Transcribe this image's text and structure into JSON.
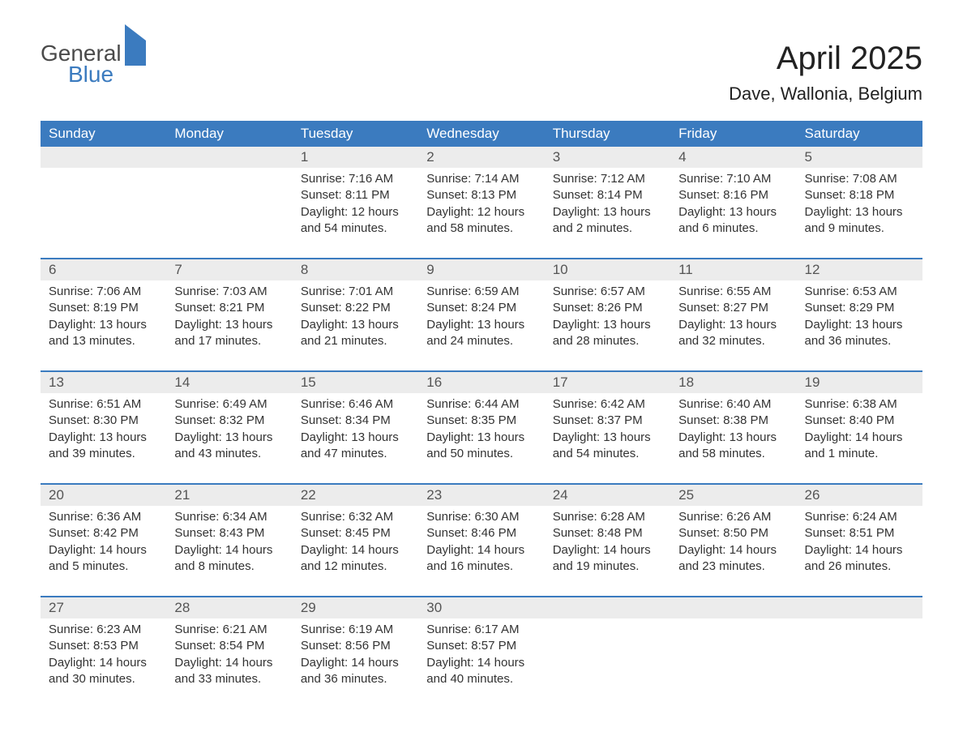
{
  "logo": {
    "general": "General",
    "blue": "Blue"
  },
  "title": "April 2025",
  "location": "Dave, Wallonia, Belgium",
  "colors": {
    "header_bg": "#3b7bbf",
    "header_text": "#ffffff",
    "daynum_bg": "#ececec",
    "daynum_text": "#555555",
    "body_text": "#333333",
    "page_bg": "#ffffff"
  },
  "fonts": {
    "title_size": 40,
    "location_size": 22,
    "header_size": 17,
    "daynum_size": 17,
    "cell_size": 15
  },
  "day_headers": [
    "Sunday",
    "Monday",
    "Tuesday",
    "Wednesday",
    "Thursday",
    "Friday",
    "Saturday"
  ],
  "weeks": [
    [
      null,
      null,
      {
        "n": "1",
        "sr": "7:16 AM",
        "ss": "8:11 PM",
        "dl": "12 hours and 54 minutes."
      },
      {
        "n": "2",
        "sr": "7:14 AM",
        "ss": "8:13 PM",
        "dl": "12 hours and 58 minutes."
      },
      {
        "n": "3",
        "sr": "7:12 AM",
        "ss": "8:14 PM",
        "dl": "13 hours and 2 minutes."
      },
      {
        "n": "4",
        "sr": "7:10 AM",
        "ss": "8:16 PM",
        "dl": "13 hours and 6 minutes."
      },
      {
        "n": "5",
        "sr": "7:08 AM",
        "ss": "8:18 PM",
        "dl": "13 hours and 9 minutes."
      }
    ],
    [
      {
        "n": "6",
        "sr": "7:06 AM",
        "ss": "8:19 PM",
        "dl": "13 hours and 13 minutes."
      },
      {
        "n": "7",
        "sr": "7:03 AM",
        "ss": "8:21 PM",
        "dl": "13 hours and 17 minutes."
      },
      {
        "n": "8",
        "sr": "7:01 AM",
        "ss": "8:22 PM",
        "dl": "13 hours and 21 minutes."
      },
      {
        "n": "9",
        "sr": "6:59 AM",
        "ss": "8:24 PM",
        "dl": "13 hours and 24 minutes."
      },
      {
        "n": "10",
        "sr": "6:57 AM",
        "ss": "8:26 PM",
        "dl": "13 hours and 28 minutes."
      },
      {
        "n": "11",
        "sr": "6:55 AM",
        "ss": "8:27 PM",
        "dl": "13 hours and 32 minutes."
      },
      {
        "n": "12",
        "sr": "6:53 AM",
        "ss": "8:29 PM",
        "dl": "13 hours and 36 minutes."
      }
    ],
    [
      {
        "n": "13",
        "sr": "6:51 AM",
        "ss": "8:30 PM",
        "dl": "13 hours and 39 minutes."
      },
      {
        "n": "14",
        "sr": "6:49 AM",
        "ss": "8:32 PM",
        "dl": "13 hours and 43 minutes."
      },
      {
        "n": "15",
        "sr": "6:46 AM",
        "ss": "8:34 PM",
        "dl": "13 hours and 47 minutes."
      },
      {
        "n": "16",
        "sr": "6:44 AM",
        "ss": "8:35 PM",
        "dl": "13 hours and 50 minutes."
      },
      {
        "n": "17",
        "sr": "6:42 AM",
        "ss": "8:37 PM",
        "dl": "13 hours and 54 minutes."
      },
      {
        "n": "18",
        "sr": "6:40 AM",
        "ss": "8:38 PM",
        "dl": "13 hours and 58 minutes."
      },
      {
        "n": "19",
        "sr": "6:38 AM",
        "ss": "8:40 PM",
        "dl": "14 hours and 1 minute."
      }
    ],
    [
      {
        "n": "20",
        "sr": "6:36 AM",
        "ss": "8:42 PM",
        "dl": "14 hours and 5 minutes."
      },
      {
        "n": "21",
        "sr": "6:34 AM",
        "ss": "8:43 PM",
        "dl": "14 hours and 8 minutes."
      },
      {
        "n": "22",
        "sr": "6:32 AM",
        "ss": "8:45 PM",
        "dl": "14 hours and 12 minutes."
      },
      {
        "n": "23",
        "sr": "6:30 AM",
        "ss": "8:46 PM",
        "dl": "14 hours and 16 minutes."
      },
      {
        "n": "24",
        "sr": "6:28 AM",
        "ss": "8:48 PM",
        "dl": "14 hours and 19 minutes."
      },
      {
        "n": "25",
        "sr": "6:26 AM",
        "ss": "8:50 PM",
        "dl": "14 hours and 23 minutes."
      },
      {
        "n": "26",
        "sr": "6:24 AM",
        "ss": "8:51 PM",
        "dl": "14 hours and 26 minutes."
      }
    ],
    [
      {
        "n": "27",
        "sr": "6:23 AM",
        "ss": "8:53 PM",
        "dl": "14 hours and 30 minutes."
      },
      {
        "n": "28",
        "sr": "6:21 AM",
        "ss": "8:54 PM",
        "dl": "14 hours and 33 minutes."
      },
      {
        "n": "29",
        "sr": "6:19 AM",
        "ss": "8:56 PM",
        "dl": "14 hours and 36 minutes."
      },
      {
        "n": "30",
        "sr": "6:17 AM",
        "ss": "8:57 PM",
        "dl": "14 hours and 40 minutes."
      },
      null,
      null,
      null
    ]
  ],
  "labels": {
    "sunrise": "Sunrise: ",
    "sunset": "Sunset: ",
    "daylight": "Daylight: "
  }
}
